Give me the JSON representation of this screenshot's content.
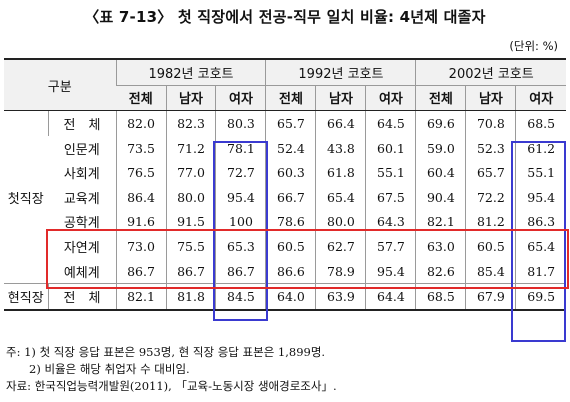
{
  "title": "〈표 7-13〉 첫 직장에서 전공-직무 일치 비율: 4년제 대졸자",
  "unit": "(단위: %)",
  "table": {
    "corner": "구분",
    "cohorts": [
      "1982년 코호트",
      "1992년 코호트",
      "2002년 코호트"
    ],
    "subheaders": [
      "전체",
      "남자",
      "여자"
    ],
    "groups": [
      {
        "label": "첫직장",
        "rows": [
          {
            "label": "전　체",
            "values": [
              "82.0",
              "82.3",
              "80.3",
              "65.7",
              "66.4",
              "64.5",
              "69.6",
              "70.8",
              "68.5"
            ]
          },
          {
            "label": "인문계",
            "values": [
              "73.5",
              "71.2",
              "78.1",
              "52.4",
              "43.8",
              "60.1",
              "59.0",
              "52.3",
              "61.2"
            ]
          },
          {
            "label": "사회계",
            "values": [
              "76.5",
              "77.0",
              "72.7",
              "60.3",
              "61.8",
              "55.1",
              "60.4",
              "65.7",
              "55.1"
            ]
          },
          {
            "label": "교육계",
            "values": [
              "86.4",
              "80.0",
              "95.4",
              "66.7",
              "65.4",
              "67.5",
              "90.4",
              "72.2",
              "95.4"
            ]
          },
          {
            "label": "공학계",
            "values": [
              "91.6",
              "91.5",
              "100",
              "78.6",
              "80.0",
              "64.3",
              "82.1",
              "81.2",
              "86.3"
            ]
          },
          {
            "label": "자연계",
            "values": [
              "73.0",
              "75.5",
              "65.3",
              "60.5",
              "62.7",
              "57.7",
              "63.0",
              "60.5",
              "65.4"
            ]
          },
          {
            "label": "예체계",
            "values": [
              "86.7",
              "86.7",
              "86.7",
              "86.6",
              "78.9",
              "95.4",
              "82.6",
              "85.4",
              "81.7"
            ]
          }
        ]
      },
      {
        "label": "현직장",
        "rows": [
          {
            "label": "전　체",
            "values": [
              "82.1",
              "81.8",
              "84.5",
              "64.0",
              "63.9",
              "64.4",
              "68.5",
              "67.9",
              "69.5"
            ]
          }
        ]
      }
    ]
  },
  "notes": [
    "주: 1) 첫 직장 응답 표본은 953명, 현 직장 응답 표본은 1,899명.",
    "　　2) 비율은 해당 취업자 수 대비임.",
    "자료: 한국직업능력개발원(2011), 「교육-노동시장 생애경로조사」."
  ],
  "colors": {
    "highlight_blue": "#3a3ad0",
    "highlight_red": "#e12a2a",
    "header_bg": "#f1f1f1"
  }
}
